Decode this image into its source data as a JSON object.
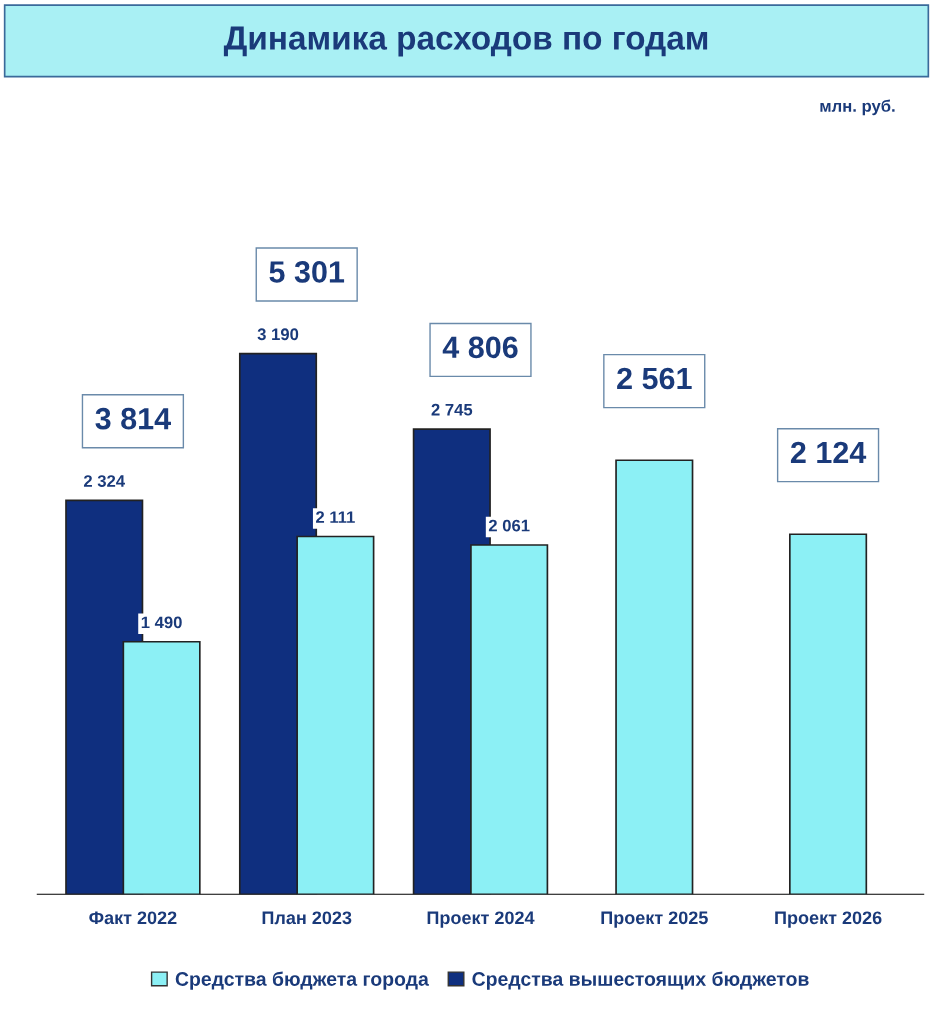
{
  "chart_data": {
    "type": "bar",
    "title": "Динамика расходов по годам",
    "annotations": [
      "млн. руб."
    ],
    "categories": [
      "Факт 2022",
      "План 2023",
      "Проект 2024",
      "Проект 2025",
      "Проект 2026"
    ],
    "series": [
      {
        "name": "Средства вышестоящих бюджетов",
        "color": "#0f2f7f",
        "values": [
          2324,
          3190,
          2745,
          null,
          null
        ],
        "value_labels": [
          "2 324",
          "3 190",
          "2 745",
          null,
          null
        ]
      },
      {
        "name": "Средства бюджета города",
        "color": "#8cf0f5",
        "values": [
          1490,
          2111,
          2061,
          2561,
          2124
        ],
        "value_labels": [
          "1 490",
          "2 111",
          "2 061",
          null,
          null
        ]
      }
    ],
    "totals": [
      "3 814",
      "5 301",
      "4 806",
      "2 561",
      "2 124"
    ],
    "legend": "bottom",
    "grid": false
  }
}
